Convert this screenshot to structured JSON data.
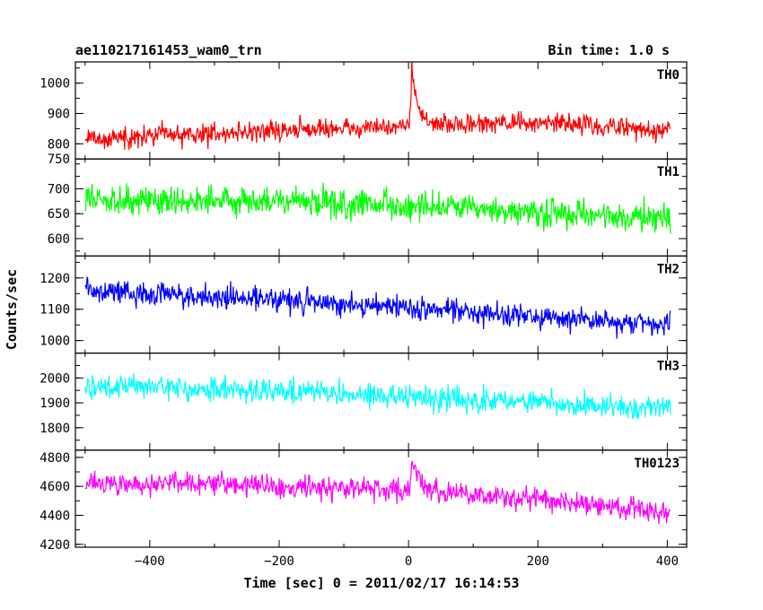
{
  "header": {
    "title": "ae110217161453_wam0_trn",
    "bin_time": "Bin time: 1.0 s"
  },
  "chart_data": {
    "type": "line",
    "xlabel": "Time [sec] 0 = 2011/02/17 16:14:53",
    "ylabel": "Counts/sec",
    "xlim": [
      -515,
      430
    ],
    "x_ticks": [
      -400,
      -200,
      0,
      200,
      400
    ],
    "x_tick_labels": [
      "−400",
      "−200",
      "0",
      "200",
      "400"
    ],
    "x_range": [
      -500,
      405
    ],
    "bin_time_s": 1.0,
    "panels": [
      {
        "name": "TH0",
        "color": "#ff0000",
        "ylim": [
          750,
          1070
        ],
        "y_ticks": [
          800,
          900,
          1000
        ],
        "y_tick_labels": [
          "800",
          "900",
          "1000"
        ],
        "extra_tick_labels": [
          "750"
        ],
        "baseline": [
          [
            -500,
            815
          ],
          [
            -300,
            835
          ],
          [
            0,
            860
          ],
          [
            200,
            870
          ],
          [
            400,
            845
          ]
        ],
        "noise_amp": 42,
        "burst": {
          "x": 5,
          "peak": 1075,
          "width": 8
        }
      },
      {
        "name": "TH1",
        "color": "#00ff00",
        "ylim": [
          565,
          760
        ],
        "y_ticks": [
          600,
          650,
          700
        ],
        "y_tick_labels": [
          "600",
          "650",
          "700"
        ],
        "baseline": [
          [
            -500,
            680
          ],
          [
            -200,
            675
          ],
          [
            0,
            665
          ],
          [
            200,
            650
          ],
          [
            405,
            640
          ]
        ],
        "noise_amp": 38
      },
      {
        "name": "TH2",
        "color": "#0000ff",
        "ylim": [
          960,
          1270
        ],
        "y_ticks": [
          1000,
          1100,
          1200
        ],
        "y_tick_labels": [
          "1000",
          "1100",
          "1200"
        ],
        "baseline": [
          [
            -500,
            1160
          ],
          [
            -200,
            1130
          ],
          [
            0,
            1105
          ],
          [
            200,
            1075
          ],
          [
            405,
            1050
          ]
        ],
        "noise_amp": 48
      },
      {
        "name": "TH3",
        "color": "#00ffff",
        "ylim": [
          1710,
          2100
        ],
        "y_ticks": [
          1800,
          1900,
          2000
        ],
        "y_tick_labels": [
          "1800",
          "1900",
          "2000"
        ],
        "baseline": [
          [
            -500,
            1965
          ],
          [
            -200,
            1950
          ],
          [
            0,
            1920
          ],
          [
            200,
            1900
          ],
          [
            405,
            1880
          ]
        ],
        "noise_amp": 60
      },
      {
        "name": "TH0123",
        "color": "#ff00ff",
        "ylim": [
          4180,
          4850
        ],
        "y_ticks": [
          4200,
          4400,
          4600,
          4800
        ],
        "y_tick_labels": [
          "4200",
          "4400",
          "4600",
          "4800"
        ],
        "baseline": [
          [
            -500,
            4620
          ],
          [
            -200,
            4610
          ],
          [
            0,
            4570
          ],
          [
            200,
            4510
          ],
          [
            405,
            4420
          ]
        ],
        "noise_amp": 100,
        "burst": {
          "x": 5,
          "peak": 4790,
          "width": 10
        }
      }
    ]
  }
}
